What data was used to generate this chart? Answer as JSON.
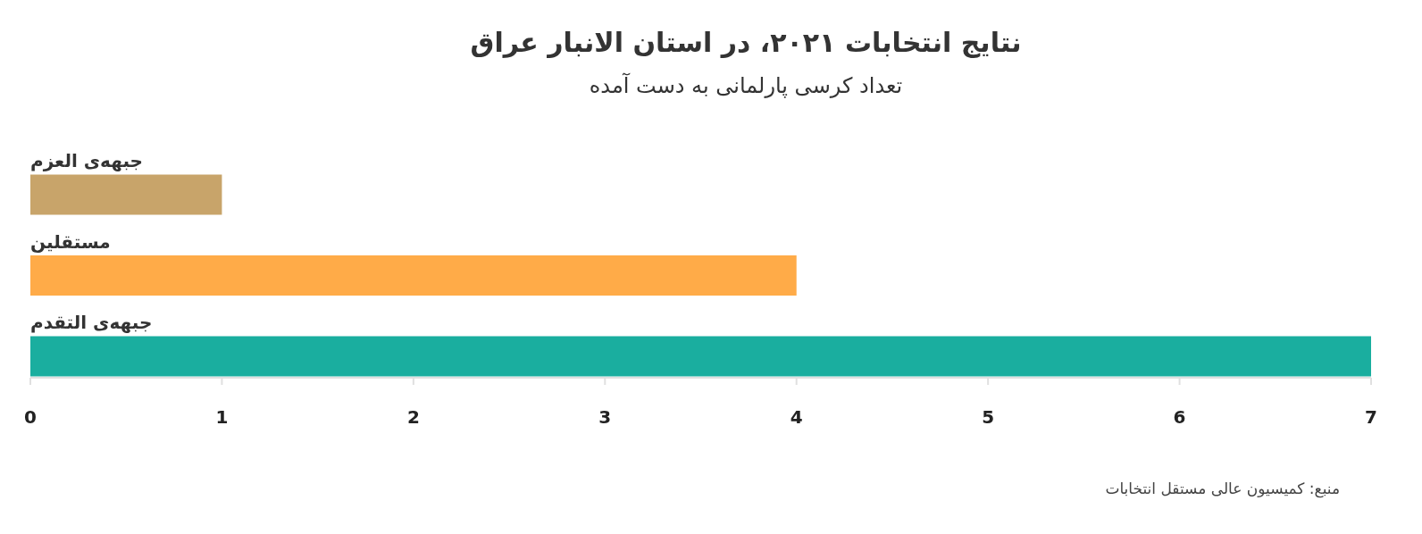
{
  "chart_data": {
    "type": "bar",
    "orientation": "horizontal",
    "title": "نتایج انتخابات ۲۰۲۱، در استان الانبار عراق",
    "subtitle": "تعداد کرسی پارلمانی به دست آمده",
    "categories": [
      "جبهه‌ی العزم",
      "مستقلین",
      "جبهه‌ی التقدم"
    ],
    "values": [
      1,
      4,
      7
    ],
    "colors": [
      "#c8a46a",
      "#ffab48",
      "#1aae9f"
    ],
    "xlim": [
      0,
      7
    ],
    "xticks": [
      0,
      1,
      2,
      3,
      4,
      5,
      6,
      7
    ],
    "annotations": [
      "منبع: کمیسیون عالی مستقل انتخابات"
    ]
  }
}
